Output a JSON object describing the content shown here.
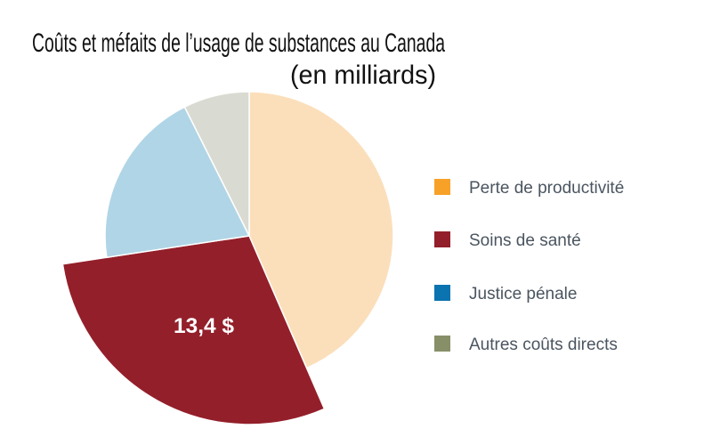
{
  "chart_data": {
    "type": "pie",
    "title": "Coûts et méfaits de l’usage de substances au Canada",
    "subtitle": "(en milliards)",
    "categories": [
      "Perte de productivité",
      "Soins de santé",
      "Justice pénale",
      "Autres coûts directs"
    ],
    "values": [
      20.0,
      13.4,
      9.2,
      3.4
    ],
    "slice_colors": [
      "#fbdfbb",
      "#931f2a",
      "#b0d5e6",
      "#d9dbd2"
    ],
    "legend_colors": [
      "#f7a128",
      "#931f2a",
      "#0a73b0",
      "#878f68"
    ],
    "emphasized_slice": "Soins de santé",
    "data_labels": {
      "Soins de santé": "13,4 $"
    },
    "legend_position": "right"
  }
}
